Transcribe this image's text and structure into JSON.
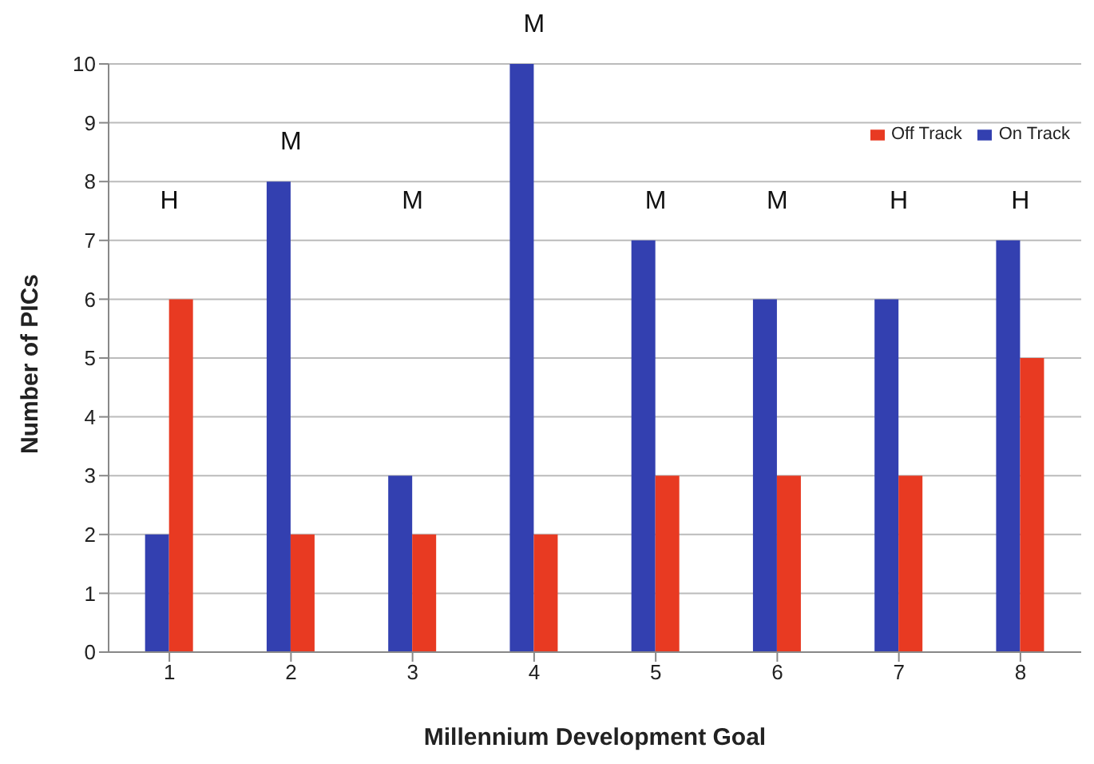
{
  "chart_data": {
    "type": "bar",
    "xlabel": "Millennium Development Goal",
    "ylabel": "Number of PICs",
    "categories": [
      "1",
      "2",
      "3",
      "4",
      "5",
      "6",
      "7",
      "8"
    ],
    "series": [
      {
        "name": "On Track",
        "color": "#3340b0",
        "values": [
          2,
          8,
          3,
          10,
          7,
          6,
          6,
          7
        ]
      },
      {
        "name": "Off Track",
        "color": "#e83a22",
        "values": [
          6,
          2,
          2,
          2,
          3,
          3,
          3,
          5
        ]
      }
    ],
    "ylim": [
      0,
      10
    ],
    "yticks": [
      0,
      1,
      2,
      3,
      4,
      5,
      6,
      7,
      8,
      9,
      10
    ],
    "grid": "y",
    "legend": "top right",
    "annotations": [
      "H",
      "M",
      "M",
      "M",
      "M",
      "M",
      "H",
      "H"
    ]
  }
}
